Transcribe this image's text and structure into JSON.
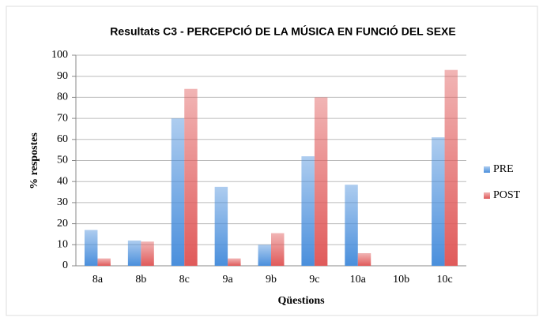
{
  "chart_data": {
    "type": "bar",
    "title": "Resultats  C3 - PERCEPCIÓ DE LA MÚSICA EN FUNCIÓ DEL SEXE",
    "x_label": "Qüestions",
    "y_label": "% respostes",
    "categories": [
      "8a",
      "8b",
      "8c",
      "9a",
      "9b",
      "9c",
      "10a",
      "10b",
      "10c"
    ],
    "series": [
      {
        "name": "PRE",
        "color": "#4a8fdc",
        "values": [
          17,
          12,
          70,
          37.5,
          10,
          52,
          38.5,
          0,
          61
        ]
      },
      {
        "name": "POST",
        "color": "#e05a5a",
        "values": [
          3.5,
          11.5,
          84,
          3.5,
          15.5,
          80,
          6,
          0,
          93
        ]
      }
    ],
    "ylim": [
      0,
      100
    ],
    "yticks": [
      0,
      10,
      20,
      30,
      40,
      50,
      60,
      70,
      80,
      90,
      100
    ],
    "grid": true,
    "legend": "right"
  }
}
